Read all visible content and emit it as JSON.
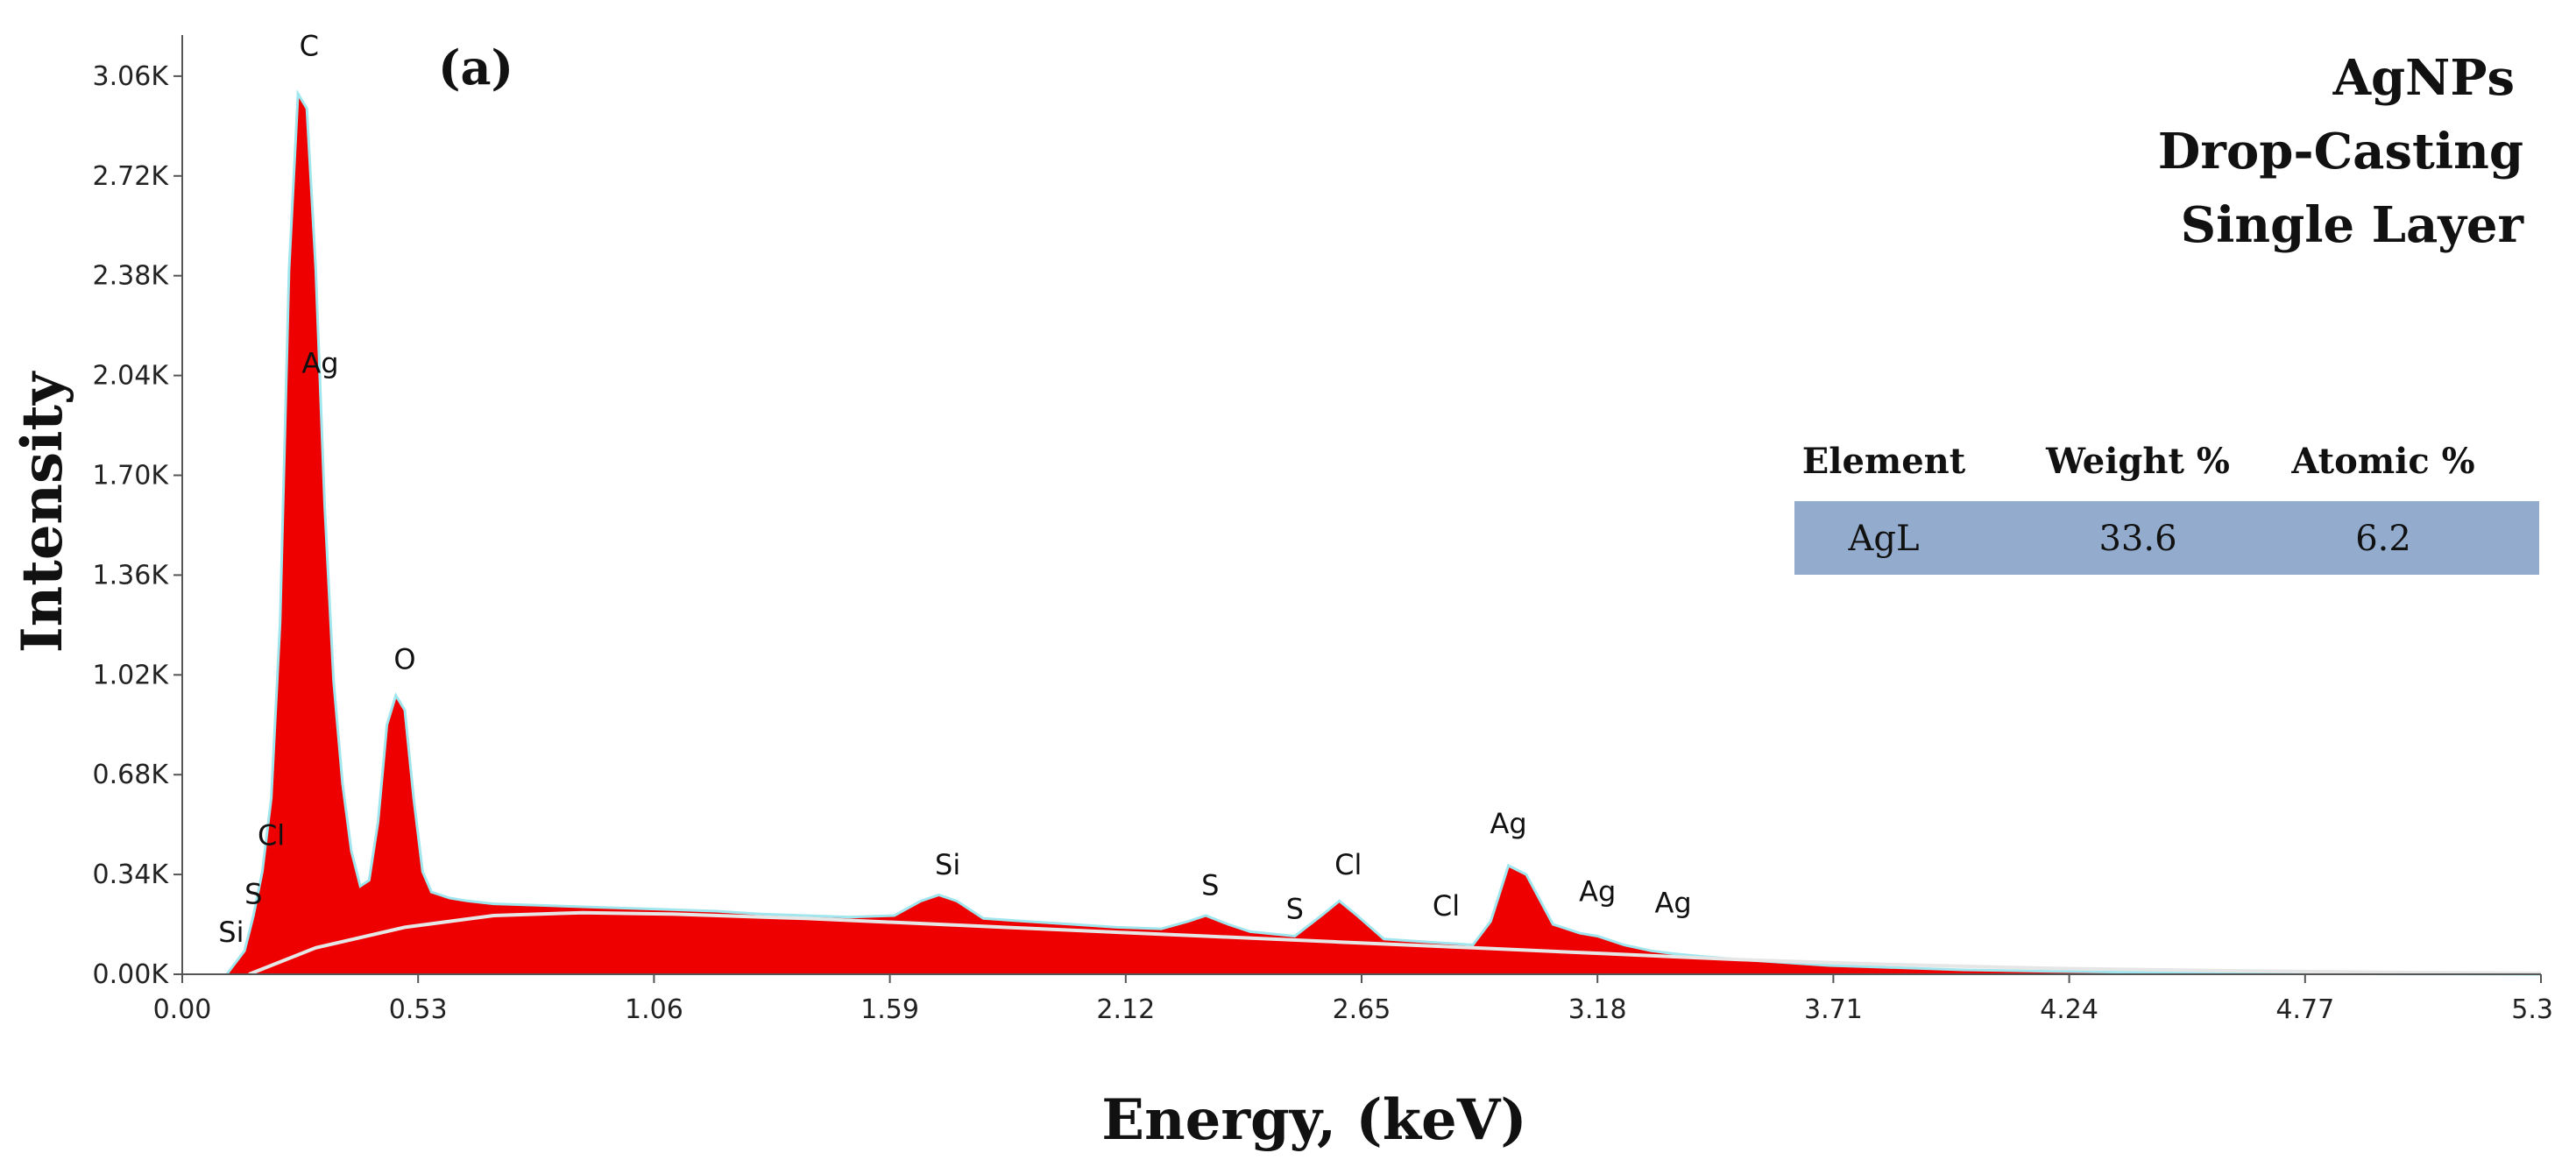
{
  "chart_data": {
    "type": "area",
    "panel_label": "(a)",
    "title_lines": [
      "AgNPs",
      "Drop-Casting",
      "Single Layer"
    ],
    "xlabel": "Energy, (keV)",
    "ylabel": "Intensity",
    "xlim": [
      0,
      5.3
    ],
    "ylim": [
      0,
      3200
    ],
    "x_ticks": [
      "0.00",
      "0.53",
      "1.06",
      "1.59",
      "2.12",
      "2.65",
      "3.18",
      "3.71",
      "4.24",
      "4.77",
      "5.3"
    ],
    "y_ticks": [
      "0.00K",
      "0.34K",
      "0.68K",
      "1.02K",
      "1.36K",
      "1.70K",
      "2.04K",
      "2.38K",
      "2.72K",
      "3.06K"
    ],
    "y_tick_values": [
      0,
      340,
      680,
      1020,
      1360,
      1700,
      2040,
      2380,
      2720,
      3060
    ],
    "spectrum": {
      "x": [
        0.1,
        0.14,
        0.16,
        0.18,
        0.2,
        0.22,
        0.24,
        0.26,
        0.28,
        0.3,
        0.32,
        0.34,
        0.36,
        0.38,
        0.4,
        0.42,
        0.44,
        0.46,
        0.48,
        0.5,
        0.52,
        0.54,
        0.56,
        0.58,
        0.6,
        0.64,
        0.7,
        0.8,
        0.9,
        1.0,
        1.1,
        1.2,
        1.3,
        1.4,
        1.5,
        1.6,
        1.66,
        1.7,
        1.74,
        1.8,
        1.9,
        2.0,
        2.1,
        2.2,
        2.26,
        2.3,
        2.35,
        2.4,
        2.5,
        2.56,
        2.6,
        2.64,
        2.7,
        2.8,
        2.9,
        2.94,
        2.98,
        3.02,
        3.08,
        3.14,
        3.18,
        3.24,
        3.3,
        3.35,
        3.42,
        3.5,
        3.6,
        3.7,
        3.8,
        3.9,
        4.0,
        4.2,
        4.5,
        4.8,
        5.0,
        5.3
      ],
      "counts": [
        0,
        80,
        200,
        350,
        600,
        1200,
        2400,
        3000,
        2950,
        2400,
        1600,
        1000,
        650,
        420,
        300,
        320,
        520,
        850,
        950,
        900,
        600,
        350,
        280,
        270,
        260,
        250,
        240,
        235,
        230,
        225,
        220,
        215,
        205,
        200,
        195,
        200,
        250,
        270,
        250,
        190,
        180,
        170,
        160,
        155,
        180,
        200,
        170,
        145,
        130,
        200,
        250,
        200,
        120,
        110,
        100,
        180,
        370,
        340,
        170,
        140,
        130,
        100,
        80,
        70,
        60,
        50,
        40,
        30,
        25,
        20,
        15,
        10,
        5,
        2,
        1,
        0
      ]
    },
    "background": {
      "x": [
        0.15,
        0.3,
        0.5,
        0.7,
        0.9,
        1.1,
        1.4,
        1.7,
        2.0,
        2.3,
        2.6,
        2.9,
        3.2,
        3.5,
        3.8,
        4.2,
        4.6,
        5.0,
        5.3
      ],
      "counts": [
        0,
        90,
        160,
        200,
        210,
        205,
        190,
        170,
        150,
        130,
        110,
        90,
        70,
        50,
        35,
        20,
        12,
        6,
        3
      ]
    },
    "peak_labels": [
      {
        "text": "C",
        "x": 0.285,
        "y": 3130
      },
      {
        "text": "Ag",
        "x": 0.31,
        "y": 2050
      },
      {
        "text": "O",
        "x": 0.5,
        "y": 1040
      },
      {
        "text": "Cl",
        "x": 0.2,
        "y": 440
      },
      {
        "text": "S",
        "x": 0.16,
        "y": 240
      },
      {
        "text": "Si",
        "x": 0.11,
        "y": 110
      },
      {
        "text": "Si",
        "x": 1.72,
        "y": 340
      },
      {
        "text": "S",
        "x": 2.31,
        "y": 270
      },
      {
        "text": "S",
        "x": 2.5,
        "y": 190
      },
      {
        "text": "Cl",
        "x": 2.62,
        "y": 340
      },
      {
        "text": "Cl",
        "x": 2.84,
        "y": 200
      },
      {
        "text": "Ag",
        "x": 2.98,
        "y": 480
      },
      {
        "text": "Ag",
        "x": 3.18,
        "y": 250
      },
      {
        "text": "Ag",
        "x": 3.35,
        "y": 210
      }
    ],
    "table": {
      "headers": [
        "Element",
        "Weight %",
        "Atomic %"
      ],
      "rows": [
        [
          "AgL",
          "33.6",
          "6.2"
        ]
      ]
    },
    "colors": {
      "fill": "#ee0000",
      "fit_line": "#9fe6ee",
      "background_line": "#e6e6e6",
      "table_row": "#93acce",
      "axis": "#555555"
    }
  }
}
